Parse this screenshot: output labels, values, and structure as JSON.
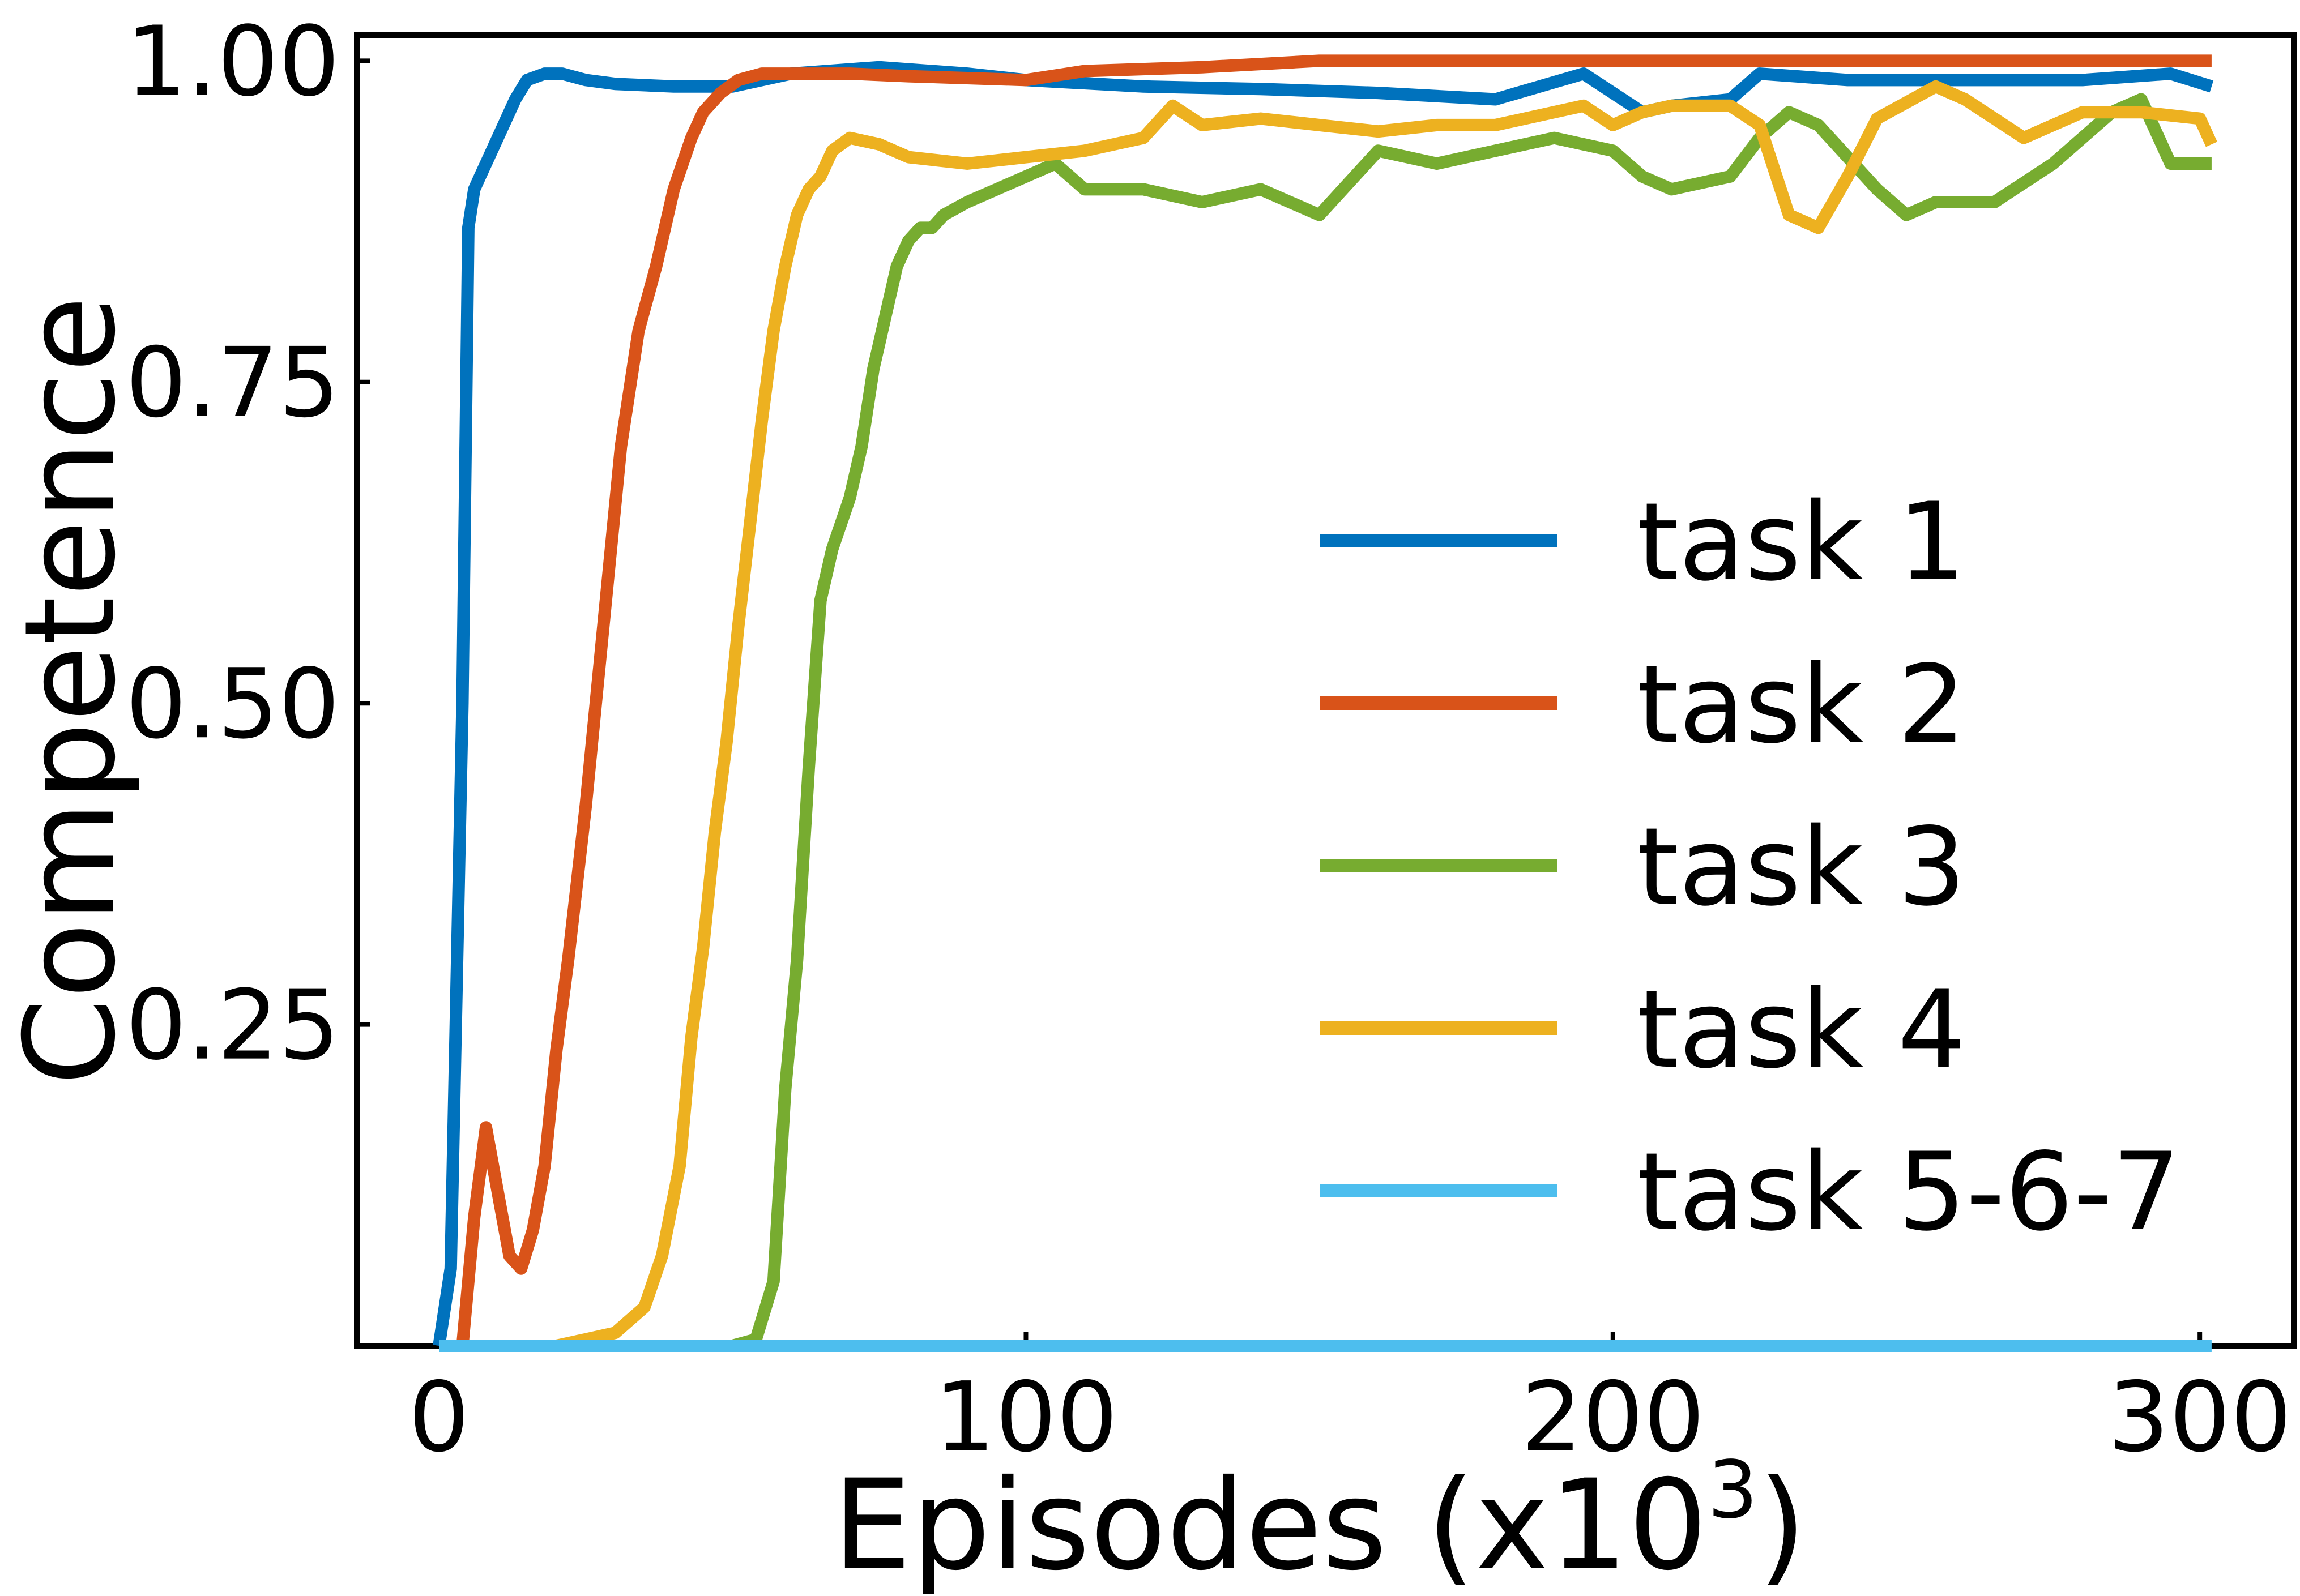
{
  "chart_data": {
    "type": "line",
    "title": "",
    "xlabel": "Episodes (x10",
    "xlabel_sup": "3",
    "xlabel_suffix": ")",
    "ylabel": "Competence",
    "xlim": [
      -14,
      316
    ],
    "ylim": [
      0,
      1.02
    ],
    "xticks": [
      0,
      100,
      200,
      300
    ],
    "xtick_labels": [
      "0",
      "100",
      "200",
      "300"
    ],
    "yticks": [
      0.25,
      0.5,
      0.75,
      1.0
    ],
    "ytick_labels": [
      "0.25",
      "0.50",
      "0.75",
      "1.00"
    ],
    "grid": false,
    "legend_position": "lower-right",
    "series": [
      {
        "name": "task 1",
        "color": "#0072BD",
        "x": [
          0,
          2,
          4,
          5,
          6,
          7,
          9,
          11,
          13,
          15,
          18,
          21,
          25,
          30,
          40,
          50,
          60,
          75,
          90,
          100,
          120,
          140,
          160,
          180,
          195,
          205,
          210,
          220,
          225,
          240,
          260,
          280,
          295,
          302
        ],
        "y": [
          0.0,
          0.06,
          0.5,
          0.87,
          0.9,
          0.91,
          0.93,
          0.95,
          0.97,
          0.985,
          0.99,
          0.99,
          0.985,
          0.982,
          0.98,
          0.98,
          0.99,
          0.995,
          0.99,
          0.985,
          0.98,
          0.978,
          0.975,
          0.97,
          0.99,
          0.96,
          0.965,
          0.97,
          0.99,
          0.985,
          0.985,
          0.985,
          0.99,
          0.98
        ]
      },
      {
        "name": "task 2",
        "color": "#D95319",
        "x": [
          4,
          6,
          8,
          10,
          12,
          14,
          16,
          18,
          20,
          22,
          25,
          28,
          31,
          34,
          37,
          40,
          43,
          45,
          48,
          51,
          55,
          60,
          70,
          80,
          100,
          110,
          130,
          150,
          200,
          302
        ],
        "y": [
          0.0,
          0.1,
          0.17,
          0.12,
          0.07,
          0.06,
          0.09,
          0.14,
          0.23,
          0.3,
          0.42,
          0.56,
          0.7,
          0.79,
          0.84,
          0.9,
          0.94,
          0.96,
          0.975,
          0.985,
          0.99,
          0.99,
          0.99,
          0.988,
          0.985,
          0.992,
          0.995,
          1.0,
          1.0,
          1.0
        ]
      },
      {
        "name": "task 3",
        "color": "#77AC30",
        "x": [
          50,
          54,
          57,
          59,
          61,
          63,
          65,
          67,
          70,
          72,
          74,
          76,
          78,
          80,
          82,
          84,
          86,
          90,
          95,
          100,
          105,
          110,
          120,
          130,
          140,
          150,
          160,
          170,
          180,
          190,
          200,
          205,
          210,
          220,
          225,
          230,
          235,
          245,
          250,
          255,
          265,
          275,
          285,
          290,
          295,
          302
        ],
        "y": [
          0.0,
          0.005,
          0.05,
          0.2,
          0.3,
          0.45,
          0.58,
          0.62,
          0.66,
          0.7,
          0.76,
          0.8,
          0.84,
          0.86,
          0.87,
          0.87,
          0.88,
          0.89,
          0.9,
          0.91,
          0.92,
          0.9,
          0.9,
          0.89,
          0.9,
          0.88,
          0.93,
          0.92,
          0.93,
          0.94,
          0.93,
          0.91,
          0.9,
          0.91,
          0.94,
          0.96,
          0.95,
          0.9,
          0.88,
          0.89,
          0.89,
          0.92,
          0.96,
          0.97,
          0.92,
          0.92
        ]
      },
      {
        "name": "task 4",
        "color": "#EDB120",
        "x": [
          20,
          25,
          30,
          35,
          38,
          41,
          43,
          45,
          47,
          49,
          51,
          53,
          55,
          57,
          59,
          61,
          63,
          65,
          67,
          70,
          75,
          80,
          90,
          100,
          110,
          120,
          125,
          130,
          140,
          150,
          160,
          170,
          180,
          195,
          200,
          205,
          210,
          220,
          225,
          230,
          235,
          240,
          245,
          255,
          260,
          270,
          280,
          290,
          300,
          302
        ],
        "y": [
          0.0,
          0.005,
          0.01,
          0.03,
          0.07,
          0.14,
          0.24,
          0.31,
          0.4,
          0.47,
          0.56,
          0.64,
          0.72,
          0.79,
          0.84,
          0.88,
          0.9,
          0.91,
          0.93,
          0.94,
          0.935,
          0.925,
          0.92,
          0.925,
          0.93,
          0.94,
          0.965,
          0.95,
          0.955,
          0.95,
          0.945,
          0.95,
          0.95,
          0.965,
          0.95,
          0.96,
          0.965,
          0.965,
          0.95,
          0.88,
          0.87,
          0.91,
          0.955,
          0.98,
          0.97,
          0.94,
          0.96,
          0.96,
          0.955,
          0.935
        ]
      },
      {
        "name": "task 5-6-7",
        "color": "#4DBEEE",
        "x": [
          0,
          302
        ],
        "y": [
          0.0,
          0.0
        ]
      }
    ]
  }
}
